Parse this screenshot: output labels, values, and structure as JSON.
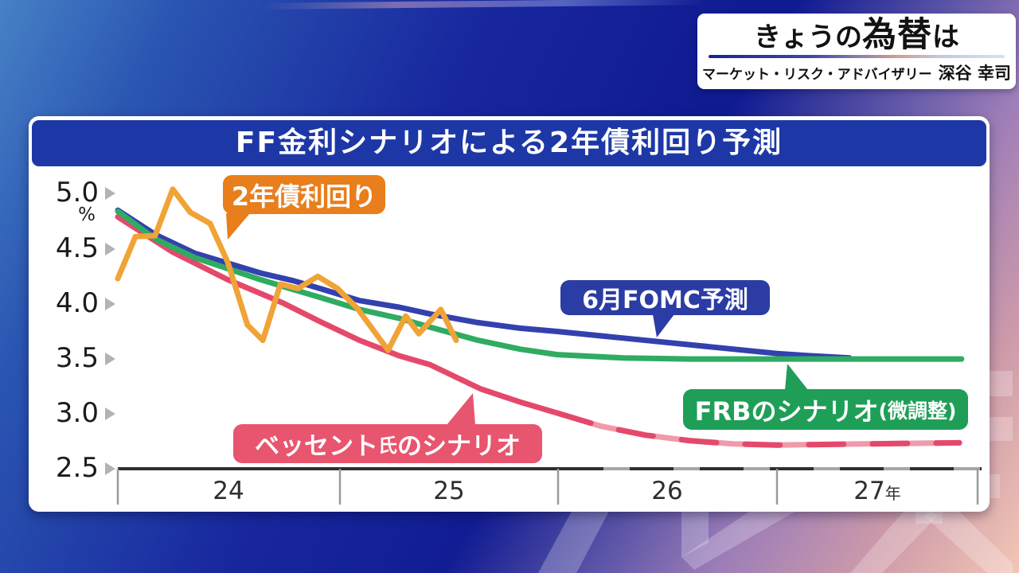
{
  "header": {
    "title_prefix": "きょうの",
    "title_emphasis": "為替",
    "title_suffix": "は",
    "subtitle_org": "マーケット・リスク・アドバイザリー",
    "subtitle_name": "深谷 幸司"
  },
  "watermark": "テレ東",
  "labels": {
    "yield": "2年債利回り",
    "fomc": "6月FOMC予測",
    "frb_main": "FRBのシナリオ",
    "frb_paren": "(微調整)",
    "bessent_pre": "ベッセント",
    "bessent_shi": "氏",
    "bessent_post": "のシナリオ"
  },
  "chart_data": {
    "type": "line",
    "title": "FF金利シナリオによる2年債利回り予測",
    "ylabel": "%",
    "ylim": [
      2.5,
      5.0
    ],
    "yticks": [
      "5.0",
      "4.5",
      "4.0",
      "3.5",
      "3.0",
      "2.5"
    ],
    "xticks": [
      "24",
      "25",
      "26",
      "27"
    ],
    "x_unit_suffix": "年",
    "xlim_years": [
      2024.0,
      2027.91
    ],
    "grid": false,
    "legend_position": "callout-bubbles-on-plot",
    "axis_dashed_after_year": 2026.0,
    "series": [
      {
        "name": "6月FOMC予測",
        "color": "#3341AE",
        "points": [
          [
            2024.0,
            4.84
          ],
          [
            2024.17,
            4.62
          ],
          [
            2024.35,
            4.45
          ],
          [
            2024.5,
            4.36
          ],
          [
            2024.65,
            4.27
          ],
          [
            2024.8,
            4.2
          ],
          [
            2024.92,
            4.13
          ],
          [
            2025.1,
            4.02
          ],
          [
            2025.28,
            3.96
          ],
          [
            2025.42,
            3.9
          ],
          [
            2025.64,
            3.82
          ],
          [
            2025.83,
            3.77
          ],
          [
            2026.0,
            3.74
          ],
          [
            2026.3,
            3.68
          ],
          [
            2026.6,
            3.62
          ],
          [
            2026.8,
            3.58
          ],
          [
            2027.0,
            3.54
          ],
          [
            2027.15,
            3.52
          ],
          [
            2027.33,
            3.5
          ]
        ]
      },
      {
        "name": "ベッセント氏のシナリオ",
        "color": "#E4496B",
        "light_color": "#F09AAB",
        "dashed_after": 2026.0,
        "points": [
          [
            2024.0,
            4.78
          ],
          [
            2024.25,
            4.46
          ],
          [
            2024.5,
            4.21
          ],
          [
            2024.75,
            4.0
          ],
          [
            2024.92,
            3.83
          ],
          [
            2025.1,
            3.66
          ],
          [
            2025.28,
            3.52
          ],
          [
            2025.42,
            3.44
          ],
          [
            2025.65,
            3.22
          ],
          [
            2025.83,
            3.1
          ],
          [
            2026.0,
            3.0
          ],
          [
            2026.2,
            2.88
          ],
          [
            2026.4,
            2.8
          ],
          [
            2026.6,
            2.75
          ],
          [
            2026.8,
            2.72
          ],
          [
            2027.0,
            2.71
          ],
          [
            2027.4,
            2.72
          ],
          [
            2027.83,
            2.73
          ]
        ]
      },
      {
        "name": "FRBのシナリオ(微調整)",
        "color": "#2FAB62",
        "points": [
          [
            2024.0,
            4.83
          ],
          [
            2024.17,
            4.58
          ],
          [
            2024.35,
            4.41
          ],
          [
            2024.5,
            4.31
          ],
          [
            2024.65,
            4.21
          ],
          [
            2024.8,
            4.12
          ],
          [
            2024.92,
            4.05
          ],
          [
            2025.1,
            3.94
          ],
          [
            2025.28,
            3.86
          ],
          [
            2025.42,
            3.78
          ],
          [
            2025.64,
            3.66
          ],
          [
            2025.83,
            3.58
          ],
          [
            2026.0,
            3.53
          ],
          [
            2026.3,
            3.5
          ],
          [
            2026.6,
            3.49
          ],
          [
            2027.0,
            3.49
          ],
          [
            2027.84,
            3.49
          ]
        ]
      },
      {
        "name": "2年債利回り",
        "color": "#F0A336",
        "points": [
          [
            2024.0,
            4.22
          ],
          [
            2024.08,
            4.6
          ],
          [
            2024.17,
            4.61
          ],
          [
            2024.25,
            5.03
          ],
          [
            2024.33,
            4.82
          ],
          [
            2024.42,
            4.72
          ],
          [
            2024.5,
            4.37
          ],
          [
            2024.59,
            3.8
          ],
          [
            2024.66,
            3.66
          ],
          [
            2024.74,
            4.17
          ],
          [
            2024.82,
            4.13
          ],
          [
            2024.91,
            4.24
          ],
          [
            2025.0,
            4.13
          ],
          [
            2025.09,
            3.95
          ],
          [
            2025.23,
            3.57
          ],
          [
            2025.31,
            3.88
          ],
          [
            2025.37,
            3.72
          ],
          [
            2025.47,
            3.94
          ],
          [
            2025.54,
            3.66
          ]
        ]
      }
    ]
  }
}
